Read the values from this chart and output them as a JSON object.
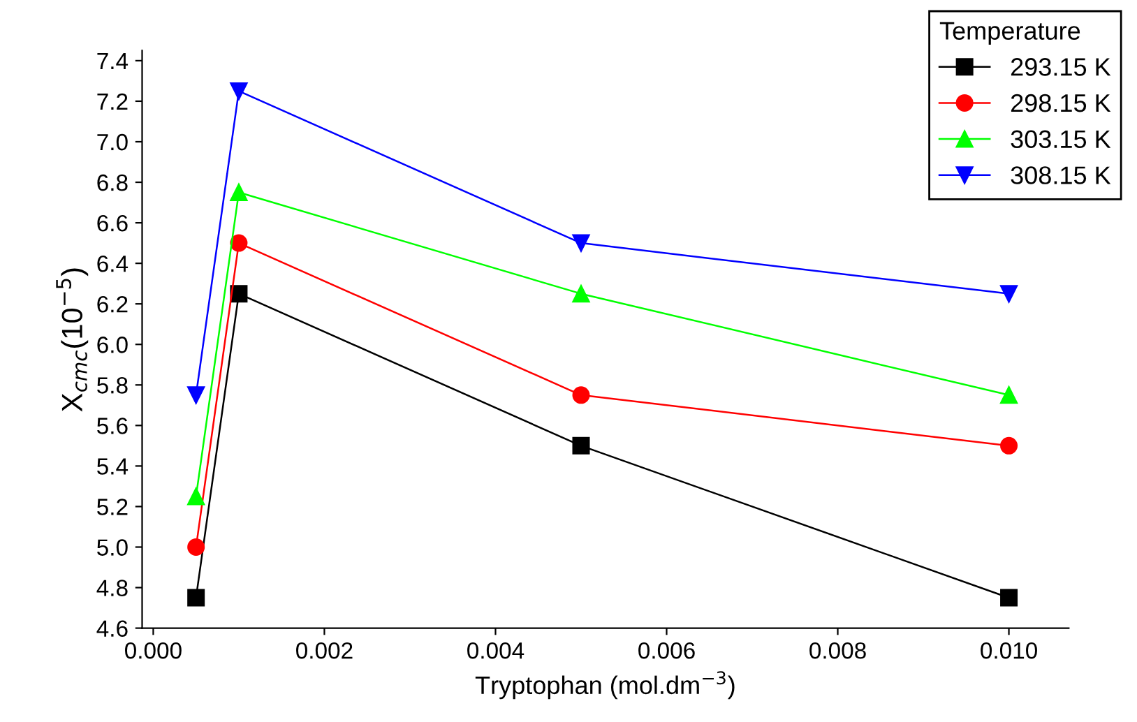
{
  "chart_data": {
    "type": "line",
    "xlabel": "Tryptophan (mol.dm$^{−3}$)",
    "ylabel": "X$_{cmc}$(10$^{−5}$)",
    "legend_title": "Temperature",
    "legend": "top right",
    "grid": false,
    "x": [
      0.0005,
      0.001,
      0.005,
      0.01
    ],
    "xlim": [
      -0.00013,
      0.0107
    ],
    "ylim": [
      4.6,
      7.45
    ],
    "xticks": [
      {
        "value": 0,
        "label": "0.000"
      },
      {
        "value": 0.002,
        "label": "0.002"
      },
      {
        "value": 0.004,
        "label": "0.004"
      },
      {
        "value": 0.006,
        "label": "0.006"
      },
      {
        "value": 0.008,
        "label": "0.008"
      },
      {
        "value": 0.01,
        "label": "0.010"
      }
    ],
    "yticks": [
      {
        "value": 4.6,
        "label": "4.6"
      },
      {
        "value": 4.8,
        "label": "4.8"
      },
      {
        "value": 5.0,
        "label": "5.0"
      },
      {
        "value": 5.2,
        "label": "5.2"
      },
      {
        "value": 5.4,
        "label": "5.4"
      },
      {
        "value": 5.6,
        "label": "5.6"
      },
      {
        "value": 5.8,
        "label": "5.8"
      },
      {
        "value": 6.0,
        "label": "6.0"
      },
      {
        "value": 6.2,
        "label": "6.2"
      },
      {
        "value": 6.4,
        "label": "6.4"
      },
      {
        "value": 6.6,
        "label": "6.6"
      },
      {
        "value": 6.8,
        "label": "6.8"
      },
      {
        "value": 7.0,
        "label": "7.0"
      },
      {
        "value": 7.2,
        "label": "7.2"
      },
      {
        "value": 7.4,
        "label": "7.4"
      }
    ],
    "series": [
      {
        "name": "293.15 K",
        "color": "#000000",
        "marker": "square",
        "values": [
          4.75,
          6.25,
          5.5,
          4.75
        ]
      },
      {
        "name": "298.15 K",
        "color": "#ff0000",
        "marker": "circle",
        "values": [
          5.0,
          6.5,
          5.75,
          5.5
        ]
      },
      {
        "name": "303.15 K",
        "color": "#00ff00",
        "marker": "triangle",
        "values": [
          5.25,
          6.75,
          6.25,
          5.75
        ]
      },
      {
        "name": "308.15 K",
        "color": "#0000ff",
        "marker": "triangle_down",
        "values": [
          5.75,
          7.25,
          6.5,
          6.25
        ]
      }
    ]
  }
}
